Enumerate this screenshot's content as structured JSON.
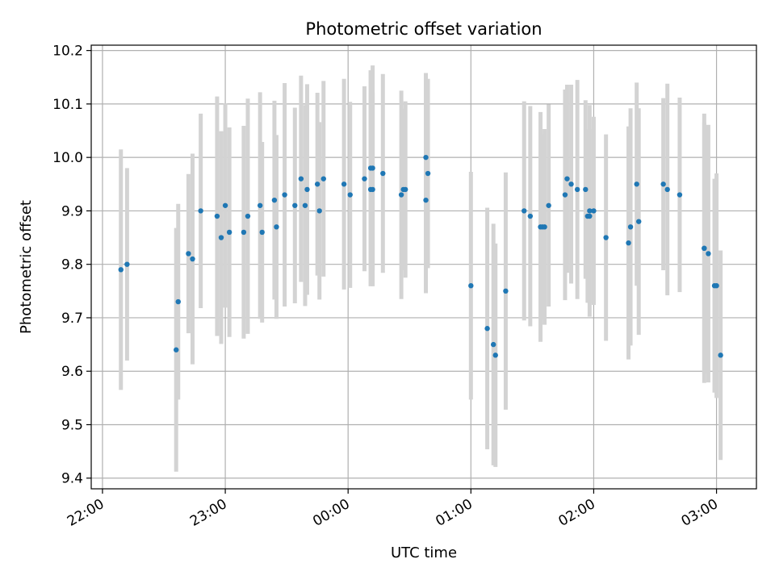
{
  "chart_data": {
    "type": "scatter",
    "title": "Photometric offset variation",
    "xlabel": "UTC time",
    "ylabel": "Photometric offset",
    "x_tick_labels": [
      "22:00",
      "23:00",
      "00:00",
      "01:00",
      "02:00",
      "03:00"
    ],
    "x_tick_minutes": [
      0,
      60,
      120,
      180,
      240,
      300
    ],
    "y_ticks": [
      9.4,
      9.5,
      9.6,
      9.7,
      9.8,
      9.9,
      10.0,
      10.1,
      10.2
    ],
    "y_tick_labels": [
      "9.4",
      "9.5",
      "9.6",
      "9.7",
      "9.8",
      "9.9",
      "10.0",
      "10.1",
      "10.2"
    ],
    "xlim_minutes": [
      -5.5,
      319.5
    ],
    "ylim": [
      9.38,
      10.21
    ],
    "grid": true,
    "colors": {
      "point": "#1f77b4",
      "errorbar": "#d3d3d3",
      "grid": "#b0b0b0",
      "axis": "#000000"
    },
    "series": [
      {
        "x_minutes": [
          9,
          12,
          36,
          37,
          42,
          44,
          48,
          56,
          58,
          60,
          62,
          69,
          71,
          77,
          78,
          84,
          85,
          89,
          94,
          97,
          99,
          100,
          105,
          106,
          108,
          118,
          121,
          128,
          131,
          131,
          132,
          132,
          137,
          146,
          147,
          148,
          158,
          158,
          159,
          180,
          188,
          191,
          192,
          197,
          206,
          209,
          214,
          215,
          216,
          218,
          226,
          227,
          229,
          232,
          236,
          237,
          238,
          238,
          240,
          246,
          257,
          258,
          261,
          262,
          274,
          276,
          282,
          294,
          294,
          296,
          299,
          300,
          302
        ],
        "y": [
          9.79,
          9.8,
          9.64,
          9.73,
          9.82,
          9.81,
          9.9,
          9.89,
          9.85,
          9.91,
          9.86,
          9.86,
          9.89,
          9.91,
          9.86,
          9.92,
          9.87,
          9.93,
          9.91,
          9.96,
          9.91,
          9.94,
          9.95,
          9.9,
          9.96,
          9.95,
          9.93,
          9.96,
          9.98,
          9.94,
          9.98,
          9.94,
          9.97,
          9.93,
          9.94,
          9.94,
          9.92,
          10.0,
          9.97,
          9.76,
          9.68,
          9.65,
          9.63,
          9.75,
          9.9,
          9.89,
          9.87,
          9.87,
          9.87,
          9.91,
          9.93,
          9.96,
          9.95,
          9.94,
          9.94,
          9.89,
          9.89,
          9.9,
          9.9,
          9.85,
          9.84,
          9.87,
          9.95,
          9.88,
          9.95,
          9.94,
          9.93,
          9.83,
          9.83,
          9.82,
          9.76,
          9.76,
          9.63
        ],
        "err": [
          0.225,
          0.18,
          0.228,
          0.183,
          0.149,
          0.197,
          0.182,
          0.224,
          0.199,
          0.191,
          0.196,
          0.199,
          0.22,
          0.212,
          0.169,
          0.186,
          0.172,
          0.209,
          0.183,
          0.193,
          0.188,
          0.197,
          0.171,
          0.166,
          0.183,
          0.197,
          0.174,
          0.173,
          0.183,
          0.181,
          0.192,
          0.181,
          0.186,
          0.195,
          0.151,
          0.165,
          0.174,
          0.158,
          0.177,
          0.213,
          0.226,
          0.226,
          0.209,
          0.222,
          0.205,
          0.206,
          0.215,
          0.173,
          0.183,
          0.189,
          0.197,
          0.176,
          0.186,
          0.205,
          0.167,
          0.162,
          0.163,
          0.198,
          0.176,
          0.193,
          0.218,
          0.222,
          0.19,
          0.212,
          0.161,
          0.198,
          0.182,
          0.235,
          0.252,
          0.241,
          0.2,
          0.21,
          0.196
        ]
      }
    ]
  }
}
